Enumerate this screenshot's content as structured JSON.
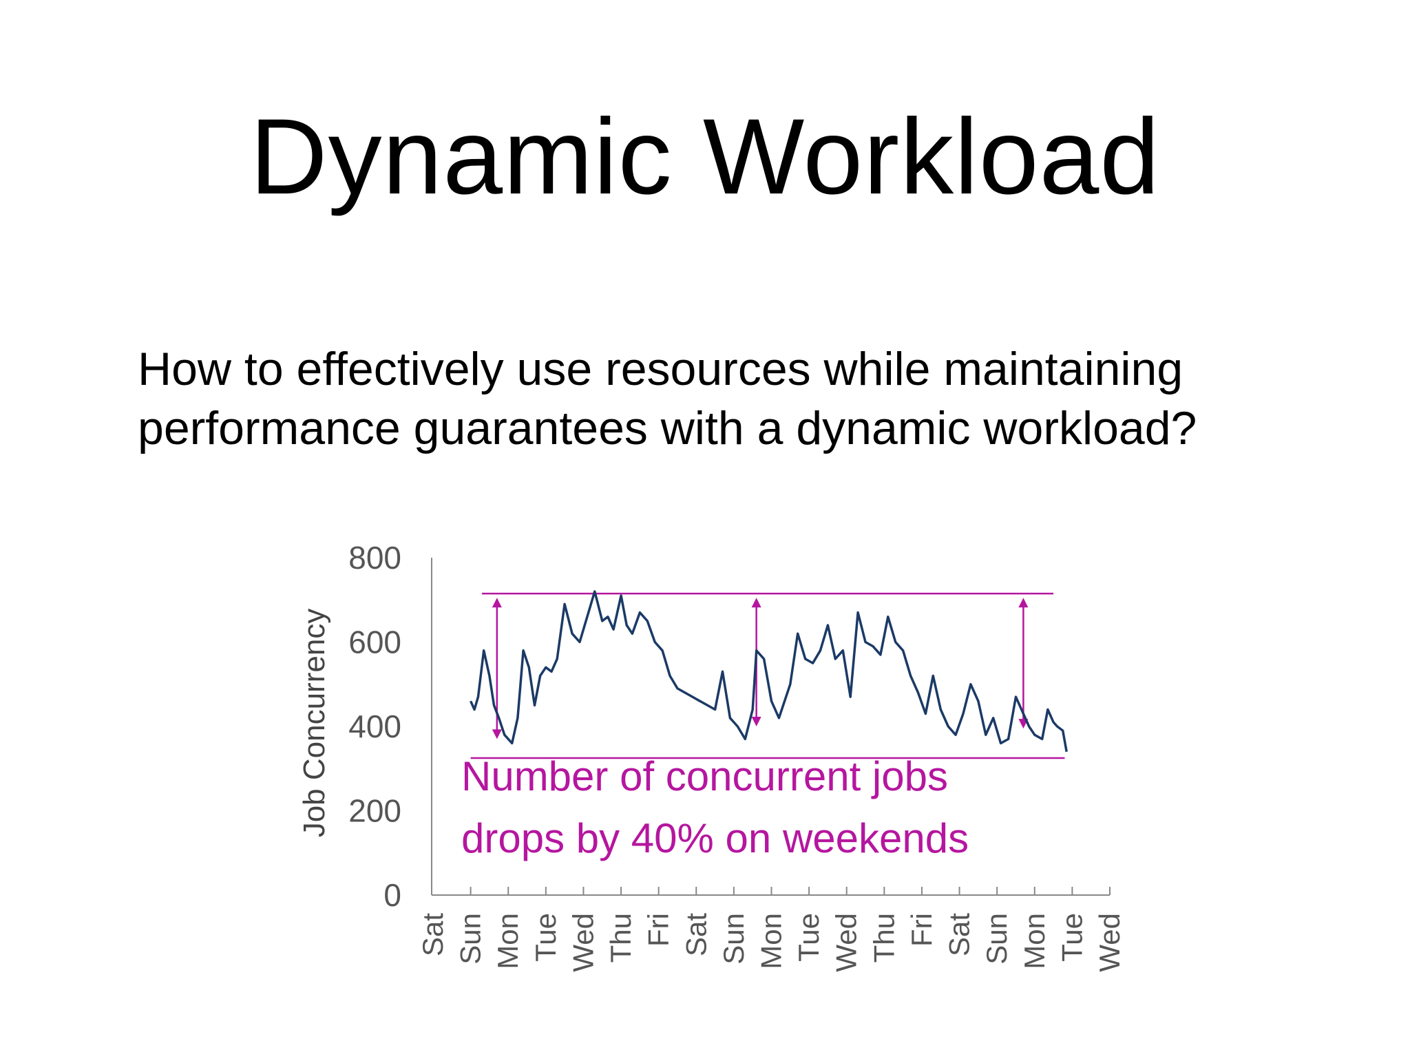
{
  "slide": {
    "title": "Dynamic Workload",
    "body_line1": "How to effectively use resources while maintaining",
    "body_line2": "performance guarantees with a dynamic workload?"
  },
  "chart_data": {
    "type": "line",
    "ylabel": "Job Concurrency",
    "ylim": [
      0,
      800
    ],
    "yticks": [
      0,
      200,
      400,
      600,
      800
    ],
    "xticks": [
      "Sat",
      "Sun",
      "Mon",
      "Tue",
      "Wed",
      "Thu",
      "Fri",
      "Sat",
      "Sun",
      "Mon",
      "Tue",
      "Wed",
      "Thu",
      "Fri",
      "Sat",
      "Sun",
      "Mon",
      "Tue",
      "Wed"
    ],
    "xlim": [
      0,
      18
    ],
    "grid": false,
    "series_color": "#1b3a66",
    "annotation_color": "#b5169f",
    "series": [
      {
        "x": [
          1.0,
          1.1,
          1.2,
          1.35,
          1.5,
          1.62,
          1.75,
          1.9,
          2.1,
          2.25,
          2.4,
          2.55,
          2.7,
          2.85,
          3.0,
          3.15,
          3.3,
          3.5,
          3.7,
          3.9,
          4.1,
          4.3,
          4.5,
          4.65,
          4.8,
          5.0,
          5.15,
          5.3,
          5.5,
          5.7,
          5.9,
          6.1,
          6.3,
          6.5,
          6.7,
          6.9,
          7.1,
          7.3,
          7.5,
          7.7,
          7.9,
          8.1,
          8.3,
          8.5,
          8.6,
          8.8,
          9.0,
          9.2,
          9.35,
          9.5,
          9.7,
          9.9,
          10.1,
          10.3,
          10.5,
          10.7,
          10.9,
          11.1,
          11.3,
          11.5,
          11.7,
          11.9,
          12.1,
          12.3,
          12.5,
          12.7,
          12.9,
          13.1,
          13.3,
          13.5,
          13.7,
          13.9,
          14.1,
          14.3,
          14.5,
          14.7,
          14.9,
          15.1,
          15.3,
          15.5,
          15.7,
          15.85,
          16.0,
          16.2,
          16.35,
          16.5,
          16.6,
          16.75,
          16.85
        ],
        "values": [
          460,
          440,
          470,
          580,
          520,
          450,
          420,
          380,
          360,
          420,
          580,
          540,
          450,
          520,
          540,
          530,
          560,
          690,
          620,
          600,
          660,
          720,
          650,
          660,
          630,
          710,
          640,
          620,
          670,
          650,
          600,
          580,
          520,
          490,
          480,
          470,
          460,
          450,
          440,
          530,
          420,
          400,
          370,
          440,
          580,
          560,
          460,
          420,
          460,
          500,
          620,
          560,
          550,
          580,
          640,
          560,
          580,
          470,
          670,
          600,
          590,
          570,
          660,
          600,
          580,
          520,
          480,
          430,
          520,
          440,
          400,
          380,
          430,
          500,
          460,
          380,
          420,
          360,
          370,
          470,
          430,
          400,
          380,
          370,
          440,
          410,
          400,
          390,
          340
        ]
      }
    ],
    "annotations": {
      "text_line1": "Number of concurrent jobs",
      "text_line2": "drops by 40% on weekends",
      "upper_line_value": 715,
      "lower_line_value": 325,
      "upper_line_x": [
        1.3,
        16.5
      ],
      "lower_line_x": [
        1.0,
        16.8
      ],
      "arrows": [
        {
          "x": 1.7,
          "from": 705,
          "to": 370
        },
        {
          "x": 8.6,
          "from": 705,
          "to": 400
        },
        {
          "x": 15.7,
          "from": 705,
          "to": 395
        }
      ]
    }
  }
}
